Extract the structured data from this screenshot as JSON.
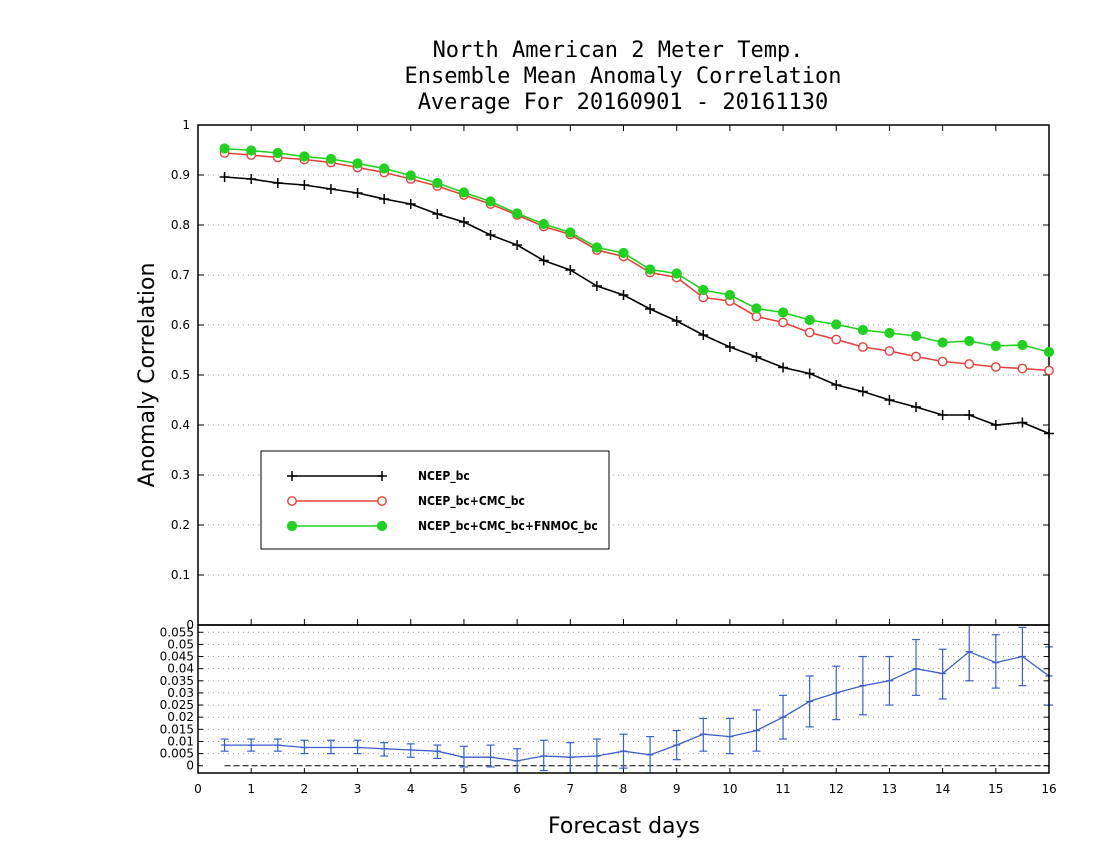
{
  "chart_data": [
    {
      "type": "line",
      "title": [
        "North American 2 Meter Temp.",
        "Ensemble Mean Anomaly Correlation",
        "Average For 20160901 - 20161130"
      ],
      "xlabel": "Forecast days",
      "ylabel": "Anomaly Correlation",
      "xlim": [
        0,
        16
      ],
      "ylim": [
        0,
        1
      ],
      "x_ticks": [
        0,
        1,
        2,
        3,
        4,
        5,
        6,
        7,
        8,
        9,
        10,
        11,
        12,
        13,
        14,
        15,
        16
      ],
      "y_ticks": [
        0.1,
        0.2,
        0.3,
        0.4,
        0.5,
        0.6,
        0.7,
        0.8,
        0.9,
        1
      ],
      "y_tick_labels": [
        "0.1",
        "0.2",
        "0.3",
        "0.4",
        "0.5",
        "0.6",
        "0.7",
        "0.8",
        "0.9",
        "1"
      ],
      "grid": "horizontal dotted",
      "legend_position": "lower-left",
      "x": [
        0.5,
        1,
        1.5,
        2,
        2.5,
        3,
        3.5,
        4,
        4.5,
        5,
        5.5,
        6,
        6.5,
        7,
        7.5,
        8,
        8.5,
        9,
        9.5,
        10,
        10.5,
        11,
        11.5,
        12,
        12.5,
        13,
        13.5,
        14,
        14.5,
        15,
        15.5,
        16
      ],
      "series": [
        {
          "name": "NCEP_bc",
          "color": "#000000",
          "marker": "plus",
          "values": [
            0.896,
            0.892,
            0.884,
            0.88,
            0.872,
            0.864,
            0.852,
            0.842,
            0.822,
            0.806,
            0.78,
            0.76,
            0.729,
            0.71,
            0.678,
            0.66,
            0.632,
            0.608,
            0.58,
            0.556,
            0.536,
            0.515,
            0.503,
            0.48,
            0.467,
            0.45,
            0.436,
            0.42,
            0.42,
            0.4,
            0.405,
            0.383
          ]
        },
        {
          "name": "NCEP_bc+CMC_bc",
          "color": "#e8403c",
          "marker": "open-circle",
          "values": [
            0.944,
            0.94,
            0.935,
            0.931,
            0.925,
            0.915,
            0.905,
            0.892,
            0.878,
            0.86,
            0.842,
            0.82,
            0.797,
            0.781,
            0.75,
            0.737,
            0.705,
            0.695,
            0.655,
            0.648,
            0.617,
            0.605,
            0.585,
            0.571,
            0.556,
            0.548,
            0.537,
            0.527,
            0.522,
            0.516,
            0.513,
            0.509
          ]
        },
        {
          "name": "NCEP_bc+CMC_bc+FNMOC_bc",
          "color": "#1ed21e",
          "marker": "filled-circle",
          "values": [
            0.953,
            0.949,
            0.944,
            0.937,
            0.932,
            0.923,
            0.913,
            0.899,
            0.884,
            0.865,
            0.847,
            0.823,
            0.802,
            0.785,
            0.755,
            0.744,
            0.711,
            0.703,
            0.67,
            0.66,
            0.633,
            0.625,
            0.61,
            0.601,
            0.59,
            0.584,
            0.578,
            0.565,
            0.568,
            0.558,
            0.56,
            0.546
          ]
        }
      ]
    },
    {
      "type": "line",
      "subtype": "errorbar",
      "xlim": [
        0,
        16
      ],
      "ylim": [
        -0.003,
        0.058
      ],
      "x_ticks": [
        0,
        1,
        2,
        3,
        4,
        5,
        6,
        7,
        8,
        9,
        10,
        11,
        12,
        13,
        14,
        15,
        16
      ],
      "x_tick_labels": [
        "0",
        "1",
        "2",
        "3",
        "4",
        "5",
        "6",
        "7",
        "8",
        "9",
        "10",
        "11",
        "12",
        "13",
        "14",
        "15",
        "16"
      ],
      "y_ticks": [
        0,
        0.005,
        0.01,
        0.015,
        0.02,
        0.025,
        0.03,
        0.035,
        0.04,
        0.045,
        0.05,
        0.055
      ],
      "y_tick_labels": [
        "0",
        "0.005",
        "0.01",
        "0.015",
        "0.02",
        "0.025",
        "0.03",
        "0.035",
        "0.04",
        "0.045",
        "0.05",
        "0.055"
      ],
      "top_label": "0",
      "grid": "horizontal dotted",
      "zero_line": "dashed",
      "color": "#3a5fcd",
      "x": [
        0.5,
        1,
        1.5,
        2,
        2.5,
        3,
        3.5,
        4,
        4.5,
        5,
        5.5,
        6,
        6.5,
        7,
        7.5,
        8,
        8.5,
        9,
        9.5,
        10,
        10.5,
        11,
        11.5,
        12,
        12.5,
        13,
        13.5,
        14,
        14.5,
        15,
        15.5,
        16
      ],
      "values": [
        0.0085,
        0.0085,
        0.0085,
        0.0075,
        0.0075,
        0.0075,
        0.007,
        0.0065,
        0.006,
        0.0035,
        0.0035,
        0.002,
        0.004,
        0.0035,
        0.004,
        0.006,
        0.0045,
        0.0085,
        0.013,
        0.012,
        0.0145,
        0.02,
        0.0265,
        0.03,
        0.033,
        0.035,
        0.04,
        0.038,
        0.047,
        0.0425,
        0.045,
        0.037
      ],
      "err_low": [
        0.006,
        0.006,
        0.006,
        0.005,
        0.005,
        0.005,
        0.004,
        0.0035,
        0.003,
        -0.0005,
        -0.0005,
        -0.003,
        -0.002,
        -0.003,
        -0.003,
        -0.001,
        -0.003,
        0.0025,
        0.006,
        0.005,
        0.006,
        0.011,
        0.016,
        0.019,
        0.021,
        0.025,
        0.029,
        0.0275,
        0.035,
        0.032,
        0.033,
        0.025
      ],
      "err_high": [
        0.011,
        0.011,
        0.011,
        0.0105,
        0.0105,
        0.0105,
        0.0095,
        0.009,
        0.0085,
        0.008,
        0.0085,
        0.007,
        0.0105,
        0.0095,
        0.011,
        0.013,
        0.012,
        0.0145,
        0.0195,
        0.0195,
        0.023,
        0.029,
        0.037,
        0.041,
        0.045,
        0.045,
        0.052,
        0.048,
        0.058,
        0.054,
        0.057,
        0.049
      ]
    }
  ]
}
